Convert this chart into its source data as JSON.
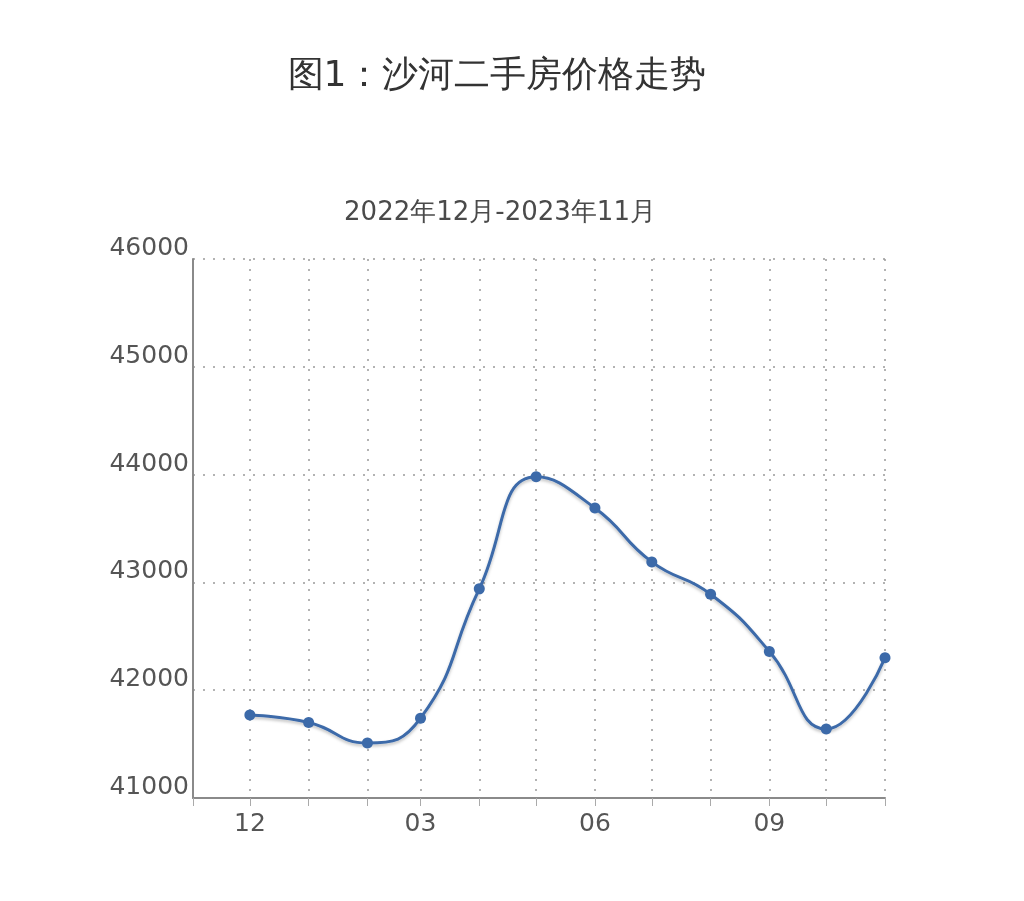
{
  "chart_data": {
    "type": "line",
    "title": "图1：沙河二手房价格走势",
    "subtitle": "2022年12月-2023年11月",
    "x": [
      "2022-12",
      "2023-01",
      "2023-02",
      "2023-03",
      "2023-04",
      "2023-05",
      "2023-06",
      "2023-07",
      "2023-08",
      "2023-09",
      "2023-10",
      "2023-11"
    ],
    "values": [
      41770,
      41700,
      41510,
      41740,
      42940,
      43980,
      43690,
      43190,
      42890,
      42360,
      41640,
      42300
    ],
    "color": "#3c6aa9",
    "xlim": [
      "2022-11",
      "2023-11"
    ],
    "xticks": [
      {
        "value": "2022-11",
        "label": null
      },
      {
        "value": "2022-12",
        "label": "12"
      },
      {
        "value": "2023-01",
        "label": null
      },
      {
        "value": "2023-02",
        "label": null
      },
      {
        "value": "2023-03",
        "label": "03"
      },
      {
        "value": "2023-04",
        "label": null
      },
      {
        "value": "2023-05",
        "label": null
      },
      {
        "value": "2023-06",
        "label": "06"
      },
      {
        "value": "2023-07",
        "label": null
      },
      {
        "value": "2023-08",
        "label": null
      },
      {
        "value": "2023-09",
        "label": "09"
      },
      {
        "value": "2023-10",
        "label": null
      },
      {
        "value": "2023-11",
        "label": null
      }
    ],
    "ylim": [
      41000,
      46000
    ],
    "yticks": [
      41000,
      42000,
      43000,
      44000,
      45000,
      46000
    ],
    "grid": true,
    "marker": "circle"
  }
}
